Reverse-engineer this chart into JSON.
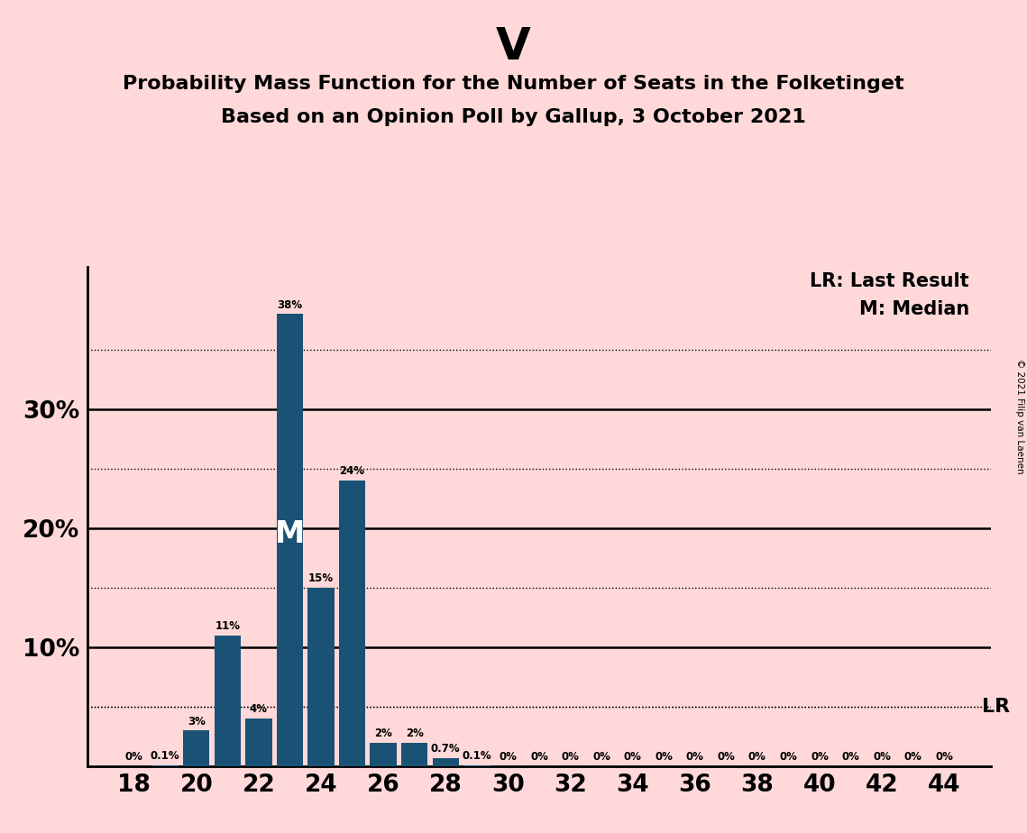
{
  "title_main": "V",
  "title_line1": "Probability Mass Function for the Number of Seats in the Folketinget",
  "title_line2": "Based on an Opinion Poll by Gallup, 3 October 2021",
  "background_color": "#FFD9D9",
  "bar_color": "#1a5276",
  "seats": [
    18,
    19,
    20,
    21,
    22,
    23,
    24,
    25,
    26,
    27,
    28,
    29,
    30,
    31,
    32,
    33,
    34,
    35,
    36,
    37,
    38,
    39,
    40,
    41,
    42,
    43,
    44
  ],
  "probabilities": [
    0.0,
    0.001,
    0.03,
    0.11,
    0.04,
    0.38,
    0.15,
    0.24,
    0.02,
    0.02,
    0.007,
    0.001,
    0.0,
    0.0,
    0.0,
    0.0,
    0.0,
    0.0,
    0.0,
    0.0,
    0.0,
    0.0,
    0.0,
    0.0,
    0.0,
    0.0,
    0.0
  ],
  "bar_labels": [
    "0%",
    "0.1%",
    "3%",
    "11%",
    "4%",
    "38%",
    "15%",
    "24%",
    "2%",
    "2%",
    "0.7%",
    "0.1%",
    "0%",
    "0%",
    "0%",
    "0%",
    "0%",
    "0%",
    "0%",
    "0%",
    "0%",
    "0%",
    "0%",
    "0%",
    "0%",
    "0%",
    "0%"
  ],
  "xtick_positions": [
    18,
    20,
    22,
    24,
    26,
    28,
    30,
    32,
    34,
    36,
    38,
    40,
    42,
    44
  ],
  "solid_yticks": [
    0.1,
    0.2,
    0.3
  ],
  "dotted_yticks": [
    0.05,
    0.15,
    0.25,
    0.35
  ],
  "ytick_labels_pos": [
    0.1,
    0.2,
    0.3
  ],
  "ytick_labels_val": [
    "10%",
    "20%",
    "30%"
  ],
  "median_seat": 23,
  "median_label": "M",
  "lr_value": 0.05,
  "lr_label": "LR",
  "legend_lr": "LR: Last Result",
  "legend_m": "M: Median",
  "copyright": "© 2021 Filip van Laenen",
  "ylim": [
    0,
    0.42
  ],
  "xlim": [
    16.5,
    45.5
  ]
}
